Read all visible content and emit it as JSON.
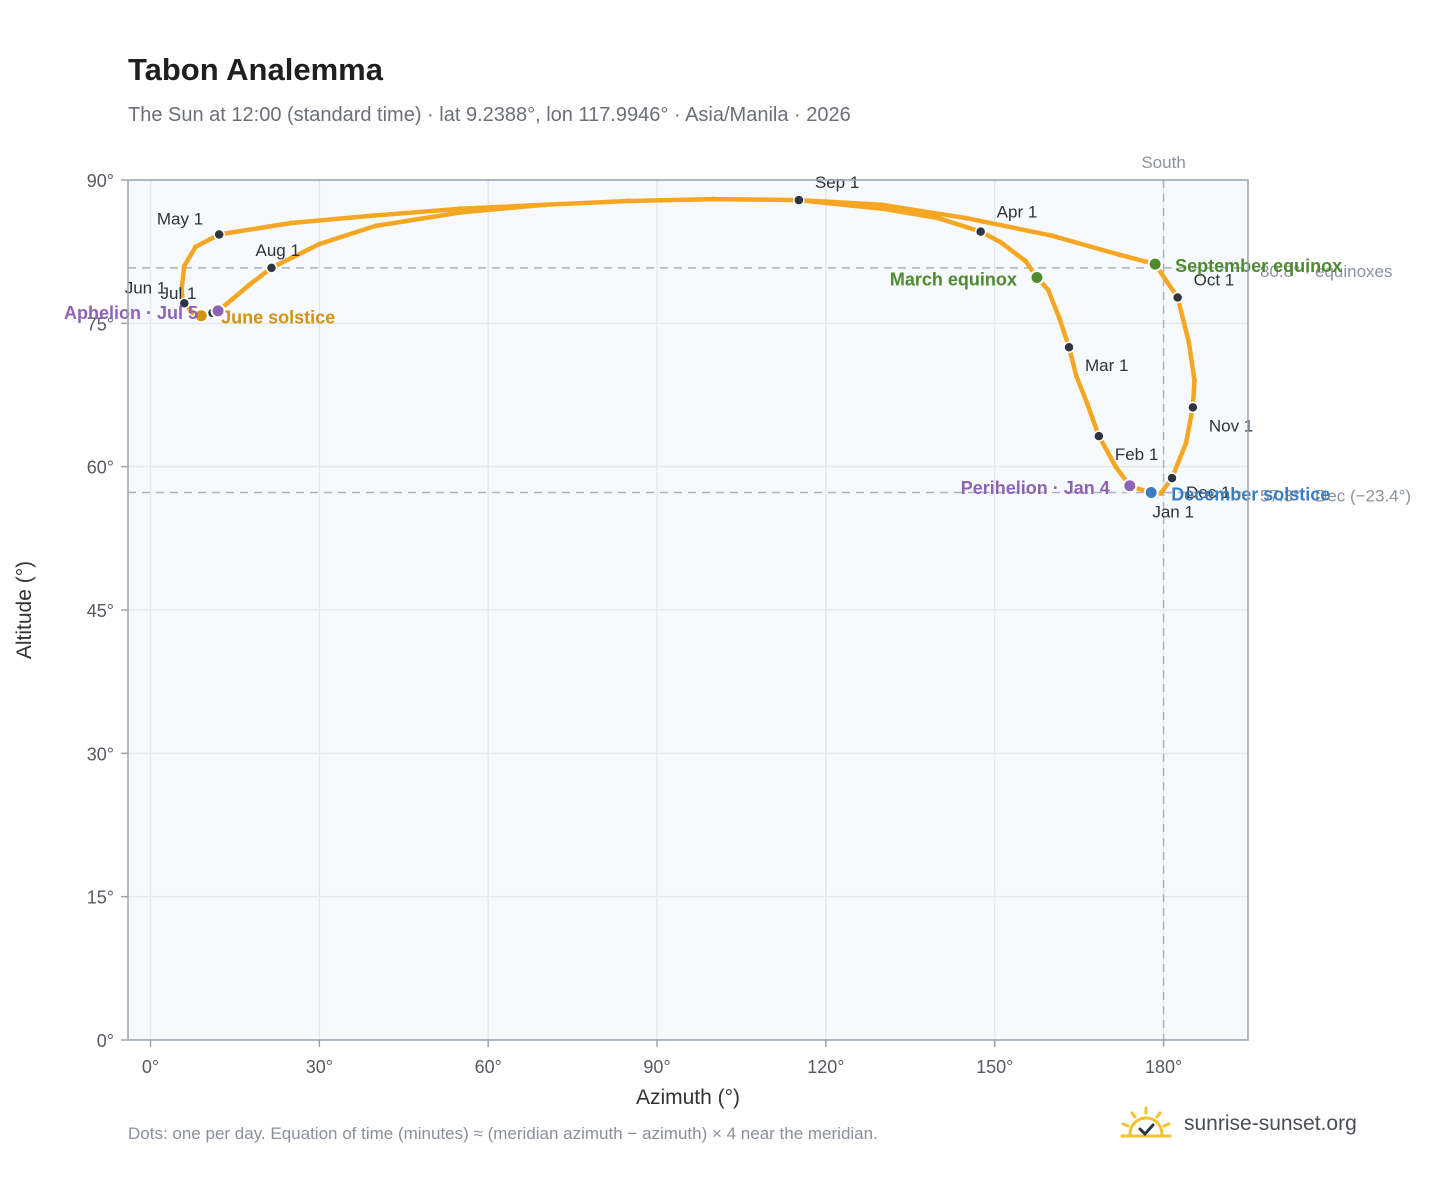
{
  "title": "Tabon Analemma",
  "subtitle": "The Sun at 12:00 (standard time) · lat 9.2388°, lon 117.9946° · Asia/Manila · 2026",
  "footnote": "Dots: one per day. Equation of time (minutes) ≈ (meridian azimuth − azimuth) × 4 near the meridian.",
  "brand": {
    "text": "sunrise-sunset.org",
    "icon": "sun-logo-icon",
    "color": "#f5c12e"
  },
  "chart_data": {
    "type": "scatter",
    "xlabel": "Azimuth (°)",
    "ylabel": "Altitude (°)",
    "xlim": [
      -4,
      195
    ],
    "ylim": [
      0,
      90
    ],
    "x_ticks": [
      0,
      30,
      60,
      90,
      120,
      150,
      180
    ],
    "x_tick_labels": [
      "0°",
      "30°",
      "60°",
      "90°",
      "120°",
      "150°",
      "180°"
    ],
    "y_ticks": [
      0,
      15,
      30,
      45,
      60,
      75,
      90
    ],
    "y_tick_labels": [
      "0°",
      "15°",
      "30°",
      "45°",
      "60°",
      "75°",
      "90°"
    ],
    "grid": true,
    "colors": {
      "path": "#f5a623",
      "month": "#2e3440",
      "equinox": "#4e8a2f",
      "june": "#d4920f",
      "december": "#3b7dc0",
      "apsis": "#8e62b5",
      "ref": "#aab2bb",
      "plot_bg": "#f7fafd",
      "frame": "#9aa5b1"
    },
    "reference_lines": {
      "vertical": {
        "x": 180,
        "label": "South"
      },
      "horizontal": [
        {
          "y": 80.8,
          "label": "80.8° · equinoxes"
        },
        {
          "y": 57.3,
          "label": "57.3° · Dec (−23.4°)"
        }
      ]
    },
    "path_points": [
      [
        177.5,
        57.3
      ],
      [
        174.0,
        58.0
      ],
      [
        171.5,
        60.0
      ],
      [
        168.5,
        63.2
      ],
      [
        166.5,
        66.5
      ],
      [
        164.5,
        69.5
      ],
      [
        163.2,
        72.5
      ],
      [
        161.5,
        75.5
      ],
      [
        159.5,
        78.5
      ],
      [
        157.5,
        79.8
      ],
      [
        155.5,
        81.5
      ],
      [
        151.0,
        83.5
      ],
      [
        147.5,
        84.6
      ],
      [
        140.0,
        86.0
      ],
      [
        130.0,
        87.0
      ],
      [
        115.2,
        87.9
      ],
      [
        100.0,
        88.0
      ],
      [
        85.0,
        87.8
      ],
      [
        70.0,
        87.4
      ],
      [
        55.0,
        87.0
      ],
      [
        40.0,
        86.3
      ],
      [
        25.0,
        85.5
      ],
      [
        12.2,
        84.3
      ],
      [
        8.0,
        83.0
      ],
      [
        6.0,
        81.0
      ],
      [
        5.5,
        78.5
      ],
      [
        5.8,
        77.2
      ],
      [
        7.5,
        76.1
      ],
      [
        9.0,
        75.8
      ],
      [
        10.5,
        76.0
      ],
      [
        12.0,
        76.3
      ],
      [
        14.5,
        77.5
      ],
      [
        17.5,
        79.0
      ],
      [
        21.5,
        80.8
      ],
      [
        30.0,
        83.3
      ],
      [
        40.0,
        85.2
      ],
      [
        55.0,
        86.6
      ],
      [
        70.0,
        87.4
      ],
      [
        85.0,
        87.8
      ],
      [
        100.0,
        88.0
      ],
      [
        115.2,
        87.9
      ],
      [
        130.0,
        87.4
      ],
      [
        145.0,
        86.0
      ],
      [
        160.0,
        84.2
      ],
      [
        172.0,
        82.2
      ],
      [
        178.5,
        81.2
      ],
      [
        182.5,
        77.7
      ],
      [
        184.5,
        73.0
      ],
      [
        185.5,
        69.0
      ],
      [
        185.2,
        66.2
      ],
      [
        184.0,
        62.5
      ],
      [
        181.5,
        58.8
      ],
      [
        179.5,
        57.2
      ],
      [
        177.5,
        57.3
      ]
    ],
    "month_markers": [
      {
        "label": "Jan 1",
        "x": 178.0,
        "y": 57.2
      },
      {
        "label": "Feb 1",
        "x": 168.5,
        "y": 63.2
      },
      {
        "label": "Mar 1",
        "x": 163.2,
        "y": 72.5
      },
      {
        "label": "Apr 1",
        "x": 147.5,
        "y": 84.6
      },
      {
        "label": "May 1",
        "x": 12.2,
        "y": 84.3
      },
      {
        "label": "Jun 1",
        "x": 6.0,
        "y": 77.1
      },
      {
        "label": "Jul 1",
        "x": 11.0,
        "y": 76.1
      },
      {
        "label": "Aug 1",
        "x": 21.5,
        "y": 80.8
      },
      {
        "label": "Sep 1",
        "x": 115.2,
        "y": 87.9
      },
      {
        "label": "Oct 1",
        "x": 182.5,
        "y": 77.7
      },
      {
        "label": "Nov 1",
        "x": 185.2,
        "y": 66.2
      },
      {
        "label": "Dec 1",
        "x": 181.5,
        "y": 58.8
      }
    ],
    "events": [
      {
        "label": "March equinox",
        "x": 157.5,
        "y": 79.8,
        "color_key": "equinox"
      },
      {
        "label": "September equinox",
        "x": 178.5,
        "y": 81.2,
        "color_key": "equinox"
      },
      {
        "label": "June solstice",
        "x": 9.0,
        "y": 75.8,
        "color_key": "june"
      },
      {
        "label": "December solstice",
        "x": 177.8,
        "y": 57.3,
        "color_key": "december"
      },
      {
        "label": "Aphelion · Jul 5",
        "x": 12.0,
        "y": 76.3,
        "color_key": "apsis"
      },
      {
        "label": "Perihelion · Jan 4",
        "x": 174.0,
        "y": 58.0,
        "color_key": "apsis"
      }
    ]
  }
}
